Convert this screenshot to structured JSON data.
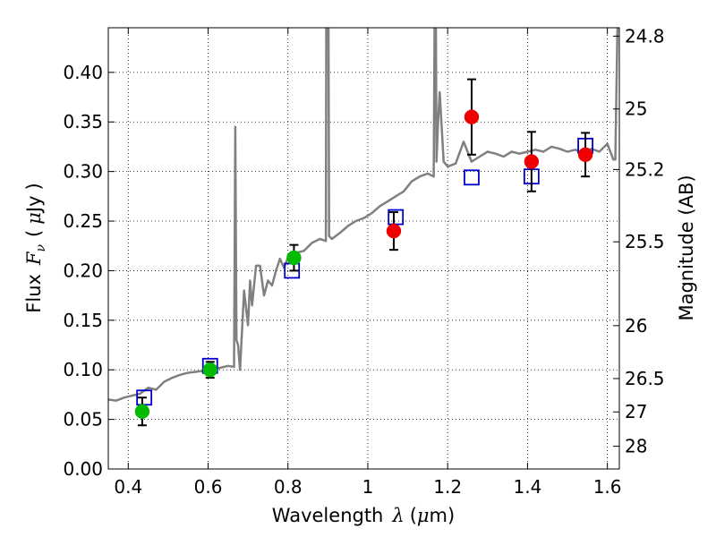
{
  "chart_data": {
    "type": "scatter",
    "xlabel": {
      "text": "Wavelength",
      "symbol": "λ",
      "unit_open": "(",
      "unit_mu": "μ",
      "unit_rest": "m)"
    },
    "ylabel": {
      "text": "Flux",
      "symbol": "F",
      "subscript": "ν",
      "unit_open": "(",
      "unit_mu": "μ",
      "unit_rest": "Jy",
      "unit_close": ")"
    },
    "y2label": "Magnitude (AB)",
    "xlim": [
      0.35,
      1.63
    ],
    "ylim": [
      0.0,
      0.445
    ],
    "grid": true,
    "x_ticks": [
      {
        "v": 0.4,
        "label": "0.4"
      },
      {
        "v": 0.6,
        "label": "0.6"
      },
      {
        "v": 0.8,
        "label": "0.8"
      },
      {
        "v": 1.0,
        "label": "1"
      },
      {
        "v": 1.2,
        "label": "1.2"
      },
      {
        "v": 1.4,
        "label": "1.4"
      },
      {
        "v": 1.6,
        "label": "1.6"
      }
    ],
    "y_ticks": [
      {
        "v": 0.0,
        "label": "0.00"
      },
      {
        "v": 0.05,
        "label": "0.05"
      },
      {
        "v": 0.1,
        "label": "0.10"
      },
      {
        "v": 0.15,
        "label": "0.15"
      },
      {
        "v": 0.2,
        "label": "0.20"
      },
      {
        "v": 0.25,
        "label": "0.25"
      },
      {
        "v": 0.3,
        "label": "0.30"
      },
      {
        "v": 0.35,
        "label": "0.35"
      },
      {
        "v": 0.4,
        "label": "0.40"
      }
    ],
    "y2_ticks": [
      {
        "mag": 24.8,
        "label": "24.8"
      },
      {
        "mag": 25,
        "label": "25"
      },
      {
        "mag": 25.2,
        "label": "25.2"
      },
      {
        "mag": 25.5,
        "label": "25.5"
      },
      {
        "mag": 26,
        "label": "26"
      },
      {
        "mag": 26.5,
        "label": "26.5"
      },
      {
        "mag": 27,
        "label": "27"
      },
      {
        "mag": 28,
        "label": "28"
      }
    ],
    "colors": {
      "spectrum": "#808080",
      "model_box": "#0000cc",
      "green_points": "#00bb00",
      "red_points": "#ee0000",
      "errorbar": "#000000",
      "grid": "#000000"
    },
    "spectrum": {
      "x": [
        0.35,
        0.37,
        0.39,
        0.41,
        0.43,
        0.45,
        0.47,
        0.49,
        0.51,
        0.53,
        0.55,
        0.57,
        0.59,
        0.61,
        0.63,
        0.65,
        0.665,
        0.668,
        0.671,
        0.675,
        0.68,
        0.69,
        0.7,
        0.705,
        0.71,
        0.72,
        0.73,
        0.74,
        0.75,
        0.76,
        0.77,
        0.78,
        0.79,
        0.8,
        0.82,
        0.84,
        0.86,
        0.88,
        0.895,
        0.897,
        0.9,
        0.903,
        0.91,
        0.93,
        0.95,
        0.97,
        0.99,
        1.01,
        1.03,
        1.05,
        1.07,
        1.09,
        1.11,
        1.13,
        1.15,
        1.165,
        1.168,
        1.17,
        1.172,
        1.176,
        1.18,
        1.19,
        1.2,
        1.22,
        1.24,
        1.26,
        1.28,
        1.3,
        1.32,
        1.34,
        1.36,
        1.38,
        1.4,
        1.42,
        1.44,
        1.46,
        1.48,
        1.5,
        1.52,
        1.54,
        1.56,
        1.58,
        1.6,
        1.615,
        1.62,
        1.625,
        1.63
      ],
      "y": [
        0.07,
        0.069,
        0.072,
        0.074,
        0.076,
        0.082,
        0.08,
        0.088,
        0.092,
        0.095,
        0.097,
        0.098,
        0.099,
        0.1,
        0.102,
        0.104,
        0.103,
        0.345,
        0.13,
        0.125,
        0.1,
        0.18,
        0.145,
        0.19,
        0.165,
        0.205,
        0.205,
        0.175,
        0.19,
        0.185,
        0.2,
        0.212,
        0.203,
        0.213,
        0.218,
        0.22,
        0.228,
        0.232,
        0.23,
        0.65,
        0.65,
        0.235,
        0.232,
        0.238,
        0.245,
        0.25,
        0.253,
        0.258,
        0.265,
        0.27,
        0.275,
        0.28,
        0.29,
        0.295,
        0.298,
        0.295,
        0.5,
        0.5,
        0.31,
        0.35,
        0.38,
        0.31,
        0.305,
        0.308,
        0.33,
        0.31,
        0.315,
        0.32,
        0.318,
        0.315,
        0.32,
        0.318,
        0.32,
        0.322,
        0.32,
        0.325,
        0.323,
        0.32,
        0.322,
        0.318,
        0.323,
        0.32,
        0.328,
        0.312,
        0.312,
        0.44,
        0.5
      ]
    },
    "model_boxes": [
      {
        "x": 0.44,
        "y": 0.072
      },
      {
        "x": 0.605,
        "y": 0.104
      },
      {
        "x": 0.81,
        "y": 0.2
      },
      {
        "x": 1.07,
        "y": 0.254
      },
      {
        "x": 1.26,
        "y": 0.294
      },
      {
        "x": 1.41,
        "y": 0.295
      },
      {
        "x": 1.545,
        "y": 0.326
      }
    ],
    "series": [
      {
        "color_key": "green_points",
        "points": [
          {
            "x": 0.435,
            "y": 0.058,
            "err": 0.014
          },
          {
            "x": 0.605,
            "y": 0.1,
            "err": 0.008
          },
          {
            "x": 0.815,
            "y": 0.213,
            "err": 0.013
          }
        ]
      },
      {
        "color_key": "red_points",
        "points": [
          {
            "x": 1.065,
            "y": 0.24,
            "err": 0.019
          },
          {
            "x": 1.26,
            "y": 0.355,
            "err": 0.038
          },
          {
            "x": 1.41,
            "y": 0.31,
            "err": 0.03
          },
          {
            "x": 1.545,
            "y": 0.317,
            "err": 0.022
          }
        ]
      }
    ]
  }
}
